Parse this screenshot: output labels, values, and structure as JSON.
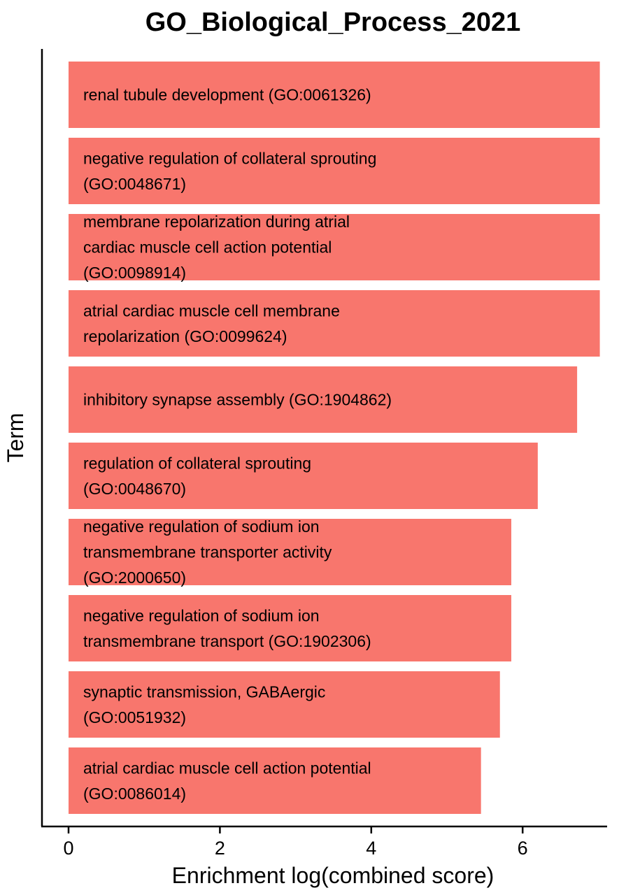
{
  "chart_data": {
    "type": "bar",
    "orientation": "horizontal",
    "title": "GO_Biological_Process_2021",
    "xlabel": "Enrichment log(combined score)",
    "ylabel": "Term",
    "xlim": [
      0,
      7.2
    ],
    "xticks": [
      0,
      2,
      4,
      6
    ],
    "bar_color": "#F8766D",
    "grid": false,
    "legend": "none",
    "categories": [
      [
        "renal tubule development (GO:0061326)"
      ],
      [
        "negative regulation of collateral sprouting",
        "(GO:0048671)"
      ],
      [
        "membrane repolarization during atrial",
        "cardiac muscle cell action potential",
        "(GO:0098914)"
      ],
      [
        "atrial cardiac muscle cell membrane",
        "repolarization (GO:0099624)"
      ],
      [
        "inhibitory synapse assembly (GO:1904862)"
      ],
      [
        "regulation of collateral sprouting",
        "(GO:0048670)"
      ],
      [
        "negative regulation of sodium ion",
        "transmembrane transporter activity",
        "(GO:2000650)"
      ],
      [
        "negative regulation of sodium ion",
        "transmembrane transport (GO:1902306)"
      ],
      [
        "synaptic transmission, GABAergic",
        "(GO:0051932)"
      ],
      [
        "atrial cardiac muscle cell action potential",
        "(GO:0086014)"
      ]
    ],
    "values": [
      7.02,
      7.02,
      7.02,
      7.02,
      6.72,
      6.2,
      5.85,
      5.85,
      5.7,
      5.45
    ]
  }
}
